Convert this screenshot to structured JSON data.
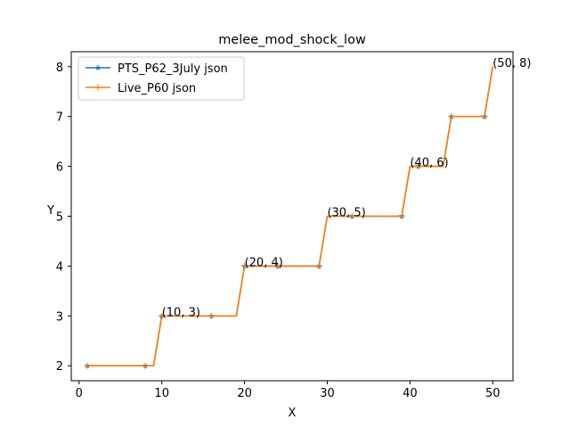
{
  "chart_data": {
    "type": "line",
    "title": "melee_mod_shock_low",
    "xlabel": "X",
    "ylabel": "Y",
    "xlim": [
      -0.95,
      52.45
    ],
    "ylim": [
      1.7,
      8.3
    ],
    "xticks": [
      0,
      10,
      20,
      30,
      40,
      50
    ],
    "yticks": [
      2,
      3,
      4,
      5,
      6,
      7,
      8
    ],
    "grid": false,
    "legend_position": "upper-left",
    "series": [
      {
        "name": "PTS_P62_3July json",
        "color": "#1f77b4",
        "marker": "star",
        "x": [
          1,
          8,
          9,
          10,
          16,
          19,
          20,
          24,
          29,
          30,
          33,
          39,
          40,
          41,
          44,
          45,
          49,
          50
        ],
        "y": [
          2,
          2,
          2,
          3,
          3,
          3,
          4,
          4,
          4,
          5,
          5,
          5,
          6,
          6,
          6,
          7,
          7,
          8
        ],
        "marker_x": [
          1,
          8,
          10,
          16,
          20,
          24,
          29,
          33,
          39,
          41,
          45,
          49
        ]
      },
      {
        "name": "Live_P60 json",
        "color": "#ff7f0e",
        "marker": "plus",
        "x": [
          1,
          8,
          9,
          10,
          16,
          19,
          20,
          24,
          29,
          30,
          33,
          39,
          40,
          41,
          44,
          45,
          49,
          50
        ],
        "y": [
          2,
          2,
          2,
          3,
          3,
          3,
          4,
          4,
          4,
          5,
          5,
          5,
          6,
          6,
          6,
          7,
          7,
          8
        ],
        "marker_x": [
          1,
          8,
          10,
          16,
          20,
          24,
          29,
          33,
          39,
          41,
          45,
          49
        ]
      }
    ],
    "annotations": [
      {
        "x": 10,
        "y": 3,
        "text": "(10, 3)"
      },
      {
        "x": 20,
        "y": 4,
        "text": "(20, 4)"
      },
      {
        "x": 30,
        "y": 5,
        "text": "(30, 5)"
      },
      {
        "x": 40,
        "y": 6,
        "text": "(40, 6)"
      },
      {
        "x": 50,
        "y": 8,
        "text": "(50, 8)"
      }
    ]
  }
}
